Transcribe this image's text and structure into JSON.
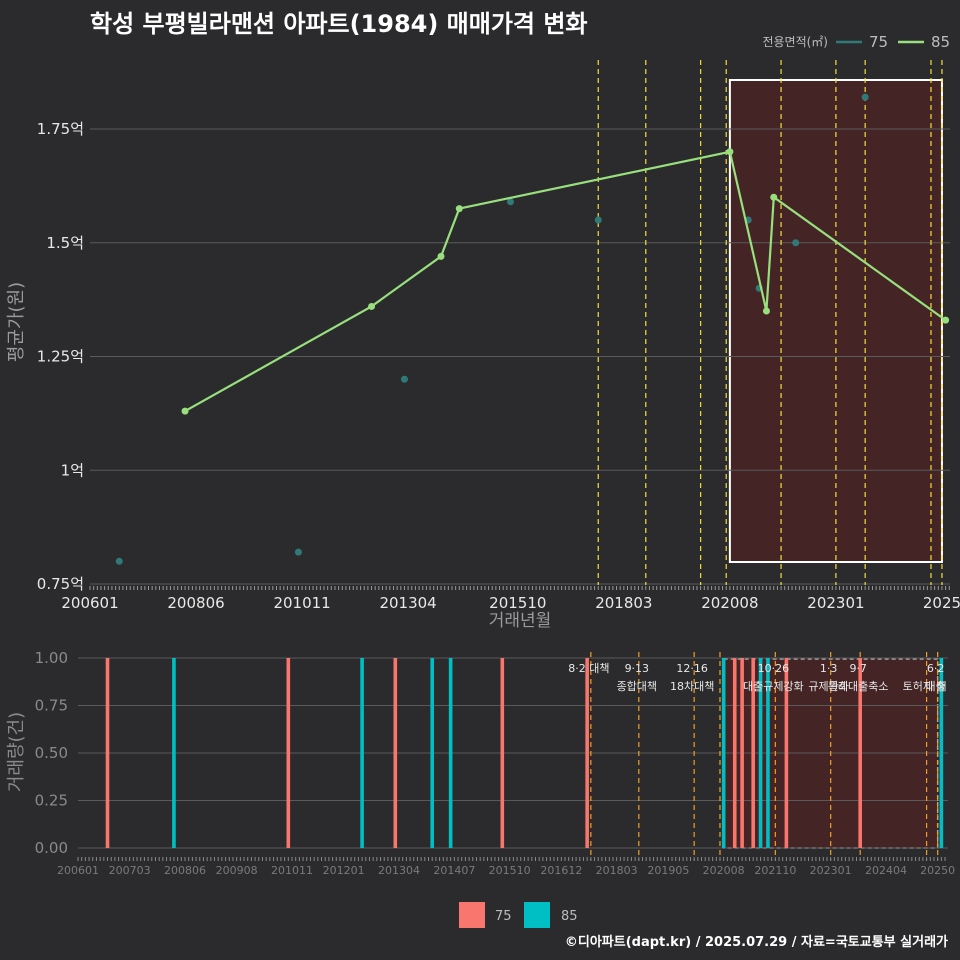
{
  "title": "학성 부평빌라맨션 아파트(1984) 매매가격 변화",
  "footer": "©디아파트(dapt.kr) / 2025.07.29 / 자료=국토교통부 실거래가",
  "colors": {
    "background": "#2b2b2d",
    "grid": "#5a5a5a",
    "line85": "#98e07e",
    "point75": "#2f7a78",
    "bar75": "#f8766d",
    "bar85": "#00bfc4",
    "policy": "#f2e03a",
    "highlight_fill": "#4a2325",
    "highlight_border": "#ffffff"
  },
  "chart_data": [
    {
      "type": "line",
      "title": "학성 부평빌라맨션 아파트(1984) 매매가격 변화",
      "xlabel": "거래년월",
      "ylabel": "평균가(원)",
      "legend_title": "전용면적(㎡)",
      "legend_position": "top-right",
      "x_tick_labels": [
        "200601",
        "200806",
        "201011",
        "201304",
        "201510",
        "201803",
        "202008",
        "202301",
        "2025"
      ],
      "y_tick_labels": [
        "0.75억",
        "1억",
        "1.25억",
        "1.5억",
        "1.75억"
      ],
      "ylim": [
        0.75,
        1.85
      ],
      "series": [
        {
          "name": "75",
          "style": "points",
          "points": [
            {
              "x": "2006-09",
              "y": 0.8
            },
            {
              "x": "2010-10",
              "y": 0.82
            },
            {
              "x": "2013-03",
              "y": 1.2
            },
            {
              "x": "2015-08",
              "y": 1.59
            },
            {
              "x": "2017-08",
              "y": 1.55
            },
            {
              "x": "2021-01",
              "y": 1.55
            },
            {
              "x": "2021-04",
              "y": 1.4
            },
            {
              "x": "2022-02",
              "y": 1.5
            },
            {
              "x": "2023-09",
              "y": 1.82
            }
          ]
        },
        {
          "name": "85",
          "style": "line",
          "points": [
            {
              "x": "2008-03",
              "y": 1.13
            },
            {
              "x": "2012-06",
              "y": 1.36
            },
            {
              "x": "2014-01",
              "y": 1.47
            },
            {
              "x": "2014-06",
              "y": 1.575
            },
            {
              "x": "2020-08",
              "y": 1.7
            },
            {
              "x": "2021-06",
              "y": 1.35
            },
            {
              "x": "2021-08",
              "y": 1.6
            },
            {
              "x": "2025-07",
              "y": 1.33
            }
          ]
        }
      ],
      "highlight_period": {
        "from": "2020-08",
        "to": "2025-06"
      }
    },
    {
      "type": "bar",
      "ylabel": "거래량(건)",
      "x_tick_labels": [
        "200601",
        "200703",
        "200806",
        "200908",
        "201011",
        "201201",
        "201304",
        "201407",
        "201510",
        "201612",
        "201803",
        "201905",
        "202008",
        "202110",
        "202301",
        "202404",
        "20250"
      ],
      "y_tick_labels": [
        "0.00",
        "0.25",
        "0.50",
        "0.75",
        "1.00"
      ],
      "ylim": [
        0,
        1
      ],
      "legend_position": "bottom",
      "legend": [
        "75",
        "85"
      ],
      "bars": [
        {
          "x": "2006-09",
          "series": "75",
          "value": 1
        },
        {
          "x": "2008-03",
          "series": "85",
          "value": 1
        },
        {
          "x": "2010-10",
          "series": "75",
          "value": 1
        },
        {
          "x": "2012-06",
          "series": "85",
          "value": 1
        },
        {
          "x": "2013-03",
          "series": "75",
          "value": 1
        },
        {
          "x": "2014-01",
          "series": "85",
          "value": 1
        },
        {
          "x": "2014-06",
          "series": "85",
          "value": 1
        },
        {
          "x": "2015-08",
          "series": "75",
          "value": 1
        },
        {
          "x": "2017-07",
          "series": "75",
          "value": 1
        },
        {
          "x": "2020-08",
          "series": "85",
          "value": 1
        },
        {
          "x": "2020-11",
          "series": "75",
          "value": 1
        },
        {
          "x": "2021-01",
          "series": "75",
          "value": 1
        },
        {
          "x": "2021-04",
          "series": "75",
          "value": 1
        },
        {
          "x": "2021-06",
          "series": "85",
          "value": 1
        },
        {
          "x": "2021-08",
          "series": "85",
          "value": 1
        },
        {
          "x": "2022-01",
          "series": "75",
          "value": 1
        },
        {
          "x": "2023-09",
          "series": "75",
          "value": 1
        },
        {
          "x": "2025-07",
          "series": "85",
          "value": 1
        }
      ],
      "highlight_period": {
        "from": "2020-08",
        "to": "2025-06"
      }
    }
  ],
  "policies": [
    {
      "x": "2017-08",
      "label_top": "8·2 대책",
      "label_bottom": ""
    },
    {
      "x": "2018-09",
      "label_top": "9·13",
      "label_bottom": "종합대책"
    },
    {
      "x": "2019-12",
      "label_top": "12·16",
      "label_bottom": "18차대책"
    },
    {
      "x": "2020-07",
      "label_top": "",
      "label_bottom": ""
    },
    {
      "x": "2021-10",
      "label_top": "10·26",
      "label_bottom": "대출규제강화"
    },
    {
      "x": "2023-01",
      "label_top": "1·3",
      "label_bottom": "규제완화"
    },
    {
      "x": "2023-09",
      "label_top": "9·7",
      "label_bottom": "특례대출축소"
    },
    {
      "x": "2025-03",
      "label_top": "",
      "label_bottom": "토허제 해"
    },
    {
      "x": "2025-06",
      "label_top": "6·2",
      "label_bottom": "대출"
    }
  ]
}
